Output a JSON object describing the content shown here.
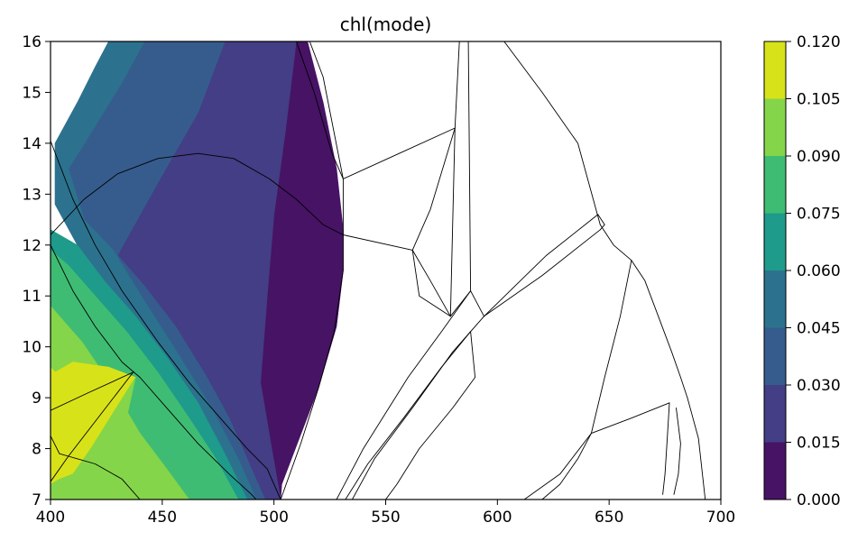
{
  "chart_data": {
    "type": "contour",
    "title": "chl(mode)",
    "xlabel": "",
    "ylabel": "",
    "xlim": [
      400,
      700
    ],
    "ylim": [
      7,
      16
    ],
    "xticks": [
      400,
      450,
      500,
      550,
      600,
      650,
      700
    ],
    "yticks": [
      7,
      8,
      9,
      10,
      11,
      12,
      13,
      14,
      15,
      16
    ],
    "grid": false,
    "colorbar": {
      "levels": [
        0.0,
        0.015,
        0.03,
        0.045,
        0.06,
        0.075,
        0.09,
        0.105,
        0.12
      ],
      "tick_labels": [
        "0.000",
        "0.015",
        "0.030",
        "0.045",
        "0.060",
        "0.075",
        "0.090",
        "0.105",
        "0.120"
      ],
      "colors": [
        "#471365",
        "#433e85",
        "#365c8d",
        "#2c728e",
        "#1e9b8a",
        "#3fbc73",
        "#85d54a",
        "#d8e219"
      ],
      "colormap": "viridis"
    },
    "filled_regions": [
      {
        "level_index": 0,
        "points": [
          [
            503,
            7
          ],
          [
            503.5,
            7.3
          ],
          [
            520,
            9.2
          ],
          [
            528,
            10.4
          ],
          [
            531,
            11.5
          ],
          [
            531,
            12.3
          ],
          [
            528,
            13.5
          ],
          [
            522,
            14.8
          ],
          [
            515,
            16
          ],
          [
            510,
            16
          ],
          [
            505,
            14.2
          ],
          [
            500,
            12.6
          ],
          [
            497,
            11
          ],
          [
            494,
            9.3
          ],
          [
            499,
            8
          ],
          [
            503,
            7
          ]
        ]
      },
      {
        "level_index": 1,
        "points": [
          [
            430,
            11.8
          ],
          [
            449,
            13.3
          ],
          [
            466,
            14.6
          ],
          [
            478,
            16
          ],
          [
            510,
            16
          ],
          [
            505,
            14.2
          ],
          [
            500,
            12.6
          ],
          [
            497,
            11
          ],
          [
            494,
            9.3
          ],
          [
            499,
            8
          ],
          [
            503,
            7
          ],
          [
            496,
            7
          ],
          [
            490,
            7.6
          ],
          [
            480,
            8.6
          ],
          [
            470,
            9.4
          ],
          [
            456,
            10.4
          ],
          [
            442,
            11.2
          ],
          [
            430,
            11.8
          ]
        ]
      },
      {
        "level_index": 2,
        "points": [
          [
            408,
            13.5
          ],
          [
            418,
            14.2
          ],
          [
            432,
            15.2
          ],
          [
            442,
            16
          ],
          [
            478,
            16
          ],
          [
            466,
            14.6
          ],
          [
            449,
            13.3
          ],
          [
            430,
            11.8
          ],
          [
            442,
            11.2
          ],
          [
            456,
            10.4
          ],
          [
            470,
            9.4
          ],
          [
            480,
            8.6
          ],
          [
            490,
            7.6
          ],
          [
            496,
            7
          ],
          [
            492,
            7
          ],
          [
            484,
            7.8
          ],
          [
            472,
            8.8
          ],
          [
            458,
            9.8
          ],
          [
            442,
            10.9
          ],
          [
            428,
            11.9
          ],
          [
            415,
            12.5
          ],
          [
            408,
            13.5
          ]
        ]
      },
      {
        "level_index": 3,
        "points": [
          [
            402,
            14
          ],
          [
            412,
            14.8
          ],
          [
            420,
            15.5
          ],
          [
            426,
            16
          ],
          [
            442,
            16
          ],
          [
            432,
            15.2
          ],
          [
            418,
            14.2
          ],
          [
            408,
            13.5
          ],
          [
            415,
            12.5
          ],
          [
            428,
            11.9
          ],
          [
            442,
            10.9
          ],
          [
            458,
            9.8
          ],
          [
            472,
            8.8
          ],
          [
            484,
            7.8
          ],
          [
            492,
            7
          ],
          [
            488,
            7
          ],
          [
            478,
            7.9
          ],
          [
            466,
            8.9
          ],
          [
            452,
            9.8
          ],
          [
            438,
            10.6
          ],
          [
            424,
            11.3
          ],
          [
            412,
            12
          ],
          [
            402,
            12.8
          ],
          [
            402,
            14
          ]
        ]
      },
      {
        "level_index": 4,
        "points": [
          [
            400,
            12.3
          ],
          [
            412,
            12
          ],
          [
            424,
            11.3
          ],
          [
            438,
            10.6
          ],
          [
            452,
            9.8
          ],
          [
            466,
            8.9
          ],
          [
            478,
            7.9
          ],
          [
            488,
            7
          ],
          [
            484,
            7
          ],
          [
            474,
            7.8
          ],
          [
            462,
            8.6
          ],
          [
            448,
            9.5
          ],
          [
            434,
            10.3
          ],
          [
            420,
            11
          ],
          [
            408,
            11.6
          ],
          [
            400,
            11.9
          ],
          [
            400,
            12.3
          ]
        ]
      },
      {
        "level_index": 5,
        "points": [
          [
            400,
            11.9
          ],
          [
            408,
            11.6
          ],
          [
            420,
            11
          ],
          [
            434,
            10.3
          ],
          [
            448,
            9.5
          ],
          [
            462,
            8.6
          ],
          [
            474,
            7.8
          ],
          [
            484,
            7
          ],
          [
            462,
            7
          ],
          [
            452,
            7.6
          ],
          [
            440,
            8.3
          ],
          [
            428,
            9.2
          ],
          [
            414,
            10.1
          ],
          [
            404,
            10.6
          ],
          [
            400,
            10.8
          ],
          [
            400,
            11.9
          ]
        ]
      },
      {
        "level_index": 6,
        "points": [
          [
            400,
            10.8
          ],
          [
            404,
            10.6
          ],
          [
            414,
            10.1
          ],
          [
            428,
            9.2
          ],
          [
            440,
            8.3
          ],
          [
            452,
            7.6
          ],
          [
            462,
            7
          ],
          [
            416,
            7
          ],
          [
            422,
            7.5
          ],
          [
            432,
            8.2
          ],
          [
            438,
            9.4
          ],
          [
            426,
            9.6
          ],
          [
            410,
            9.7
          ],
          [
            402,
            9.5
          ],
          [
            400,
            9.6
          ],
          [
            400,
            10.8
          ]
        ]
      },
      {
        "level_index": 7,
        "points": [
          [
            400,
            9.6
          ],
          [
            402,
            9.5
          ],
          [
            410,
            9.7
          ],
          [
            426,
            9.6
          ],
          [
            438,
            9.4
          ],
          [
            428,
            8.7
          ],
          [
            418,
            8
          ],
          [
            410,
            7.5
          ],
          [
            404,
            7.4
          ],
          [
            400,
            7.3
          ],
          [
            400,
            9.6
          ]
        ]
      },
      {
        "level_index": 6,
        "points": [
          [
            400,
            7.3
          ],
          [
            404,
            7.4
          ],
          [
            410,
            7.5
          ],
          [
            418,
            8
          ],
          [
            428,
            8.7
          ],
          [
            438,
            9.4
          ],
          [
            432,
            8.2
          ],
          [
            422,
            7.5
          ],
          [
            416,
            7
          ],
          [
            400,
            7
          ],
          [
            400,
            7.3
          ]
        ]
      }
    ],
    "boundary_lines": [
      [
        [
          400,
          14.05
        ],
        [
          410,
          12.9
        ],
        [
          420,
          12.0
        ],
        [
          432,
          11.1
        ],
        [
          448,
          10.1
        ],
        [
          462,
          9.3
        ],
        [
          476,
          8.6
        ],
        [
          488,
          8.0
        ],
        [
          497,
          7.6
        ],
        [
          503,
          7.0
        ]
      ],
      [
        [
          400,
          12.2
        ],
        [
          415,
          12.9
        ],
        [
          430,
          13.4
        ],
        [
          448,
          13.7
        ],
        [
          466,
          13.8
        ],
        [
          482,
          13.7
        ],
        [
          498,
          13.3
        ],
        [
          510,
          12.9
        ],
        [
          522,
          12.4
        ],
        [
          531,
          12.2
        ]
      ],
      [
        [
          400,
          12.0
        ],
        [
          410,
          11.1
        ],
        [
          420,
          10.4
        ],
        [
          432,
          9.7
        ],
        [
          440,
          9.4
        ],
        [
          452,
          8.8
        ],
        [
          466,
          8.1
        ],
        [
          480,
          7.5
        ],
        [
          490,
          7.1
        ],
        [
          492,
          7.0
        ]
      ],
      [
        [
          400,
          8.75
        ],
        [
          417,
          9.1
        ],
        [
          437,
          9.5
        ]
      ],
      [
        [
          400,
          7.35
        ],
        [
          408,
          7.85
        ],
        [
          437,
          9.5
        ]
      ],
      [
        [
          400,
          8.25
        ],
        [
          404,
          7.9
        ],
        [
          408,
          7.85
        ],
        [
          420,
          7.7
        ],
        [
          432,
          7.4
        ],
        [
          440,
          7.0
        ]
      ],
      [
        [
          510,
          16.0
        ],
        [
          518,
          15.0
        ],
        [
          526,
          13.8
        ],
        [
          531,
          13.3
        ]
      ],
      [
        [
          516,
          16.0
        ],
        [
          522,
          15.3
        ],
        [
          531,
          13.3
        ]
      ],
      [
        [
          503,
          7.0
        ],
        [
          512,
          8.1
        ],
        [
          520,
          9.2
        ],
        [
          527,
          10.3
        ],
        [
          531,
          11.5
        ],
        [
          531,
          12.3
        ],
        [
          531,
          13.3
        ]
      ],
      [
        [
          531,
          13.3
        ],
        [
          556,
          13.8
        ],
        [
          581,
          14.3
        ]
      ],
      [
        [
          531,
          12.2
        ],
        [
          562,
          11.9
        ]
      ],
      [
        [
          562,
          11.9
        ],
        [
          570,
          12.7
        ],
        [
          581,
          14.3
        ]
      ],
      [
        [
          562,
          11.9
        ],
        [
          570,
          11.3
        ],
        [
          579,
          10.6
        ]
      ],
      [
        [
          562,
          11.9
        ],
        [
          565,
          11.0
        ],
        [
          579,
          10.6
        ]
      ],
      [
        [
          579,
          10.6
        ],
        [
          581,
          14.3
        ],
        [
          583,
          16.0
        ]
      ],
      [
        [
          587,
          16.0
        ],
        [
          588,
          11.1
        ]
      ],
      [
        [
          588,
          11.1
        ],
        [
          579,
          10.6
        ]
      ],
      [
        [
          588,
          11.1
        ],
        [
          594,
          10.6
        ]
      ],
      [
        [
          594,
          10.6
        ],
        [
          608,
          11.2
        ],
        [
          622,
          11.8
        ],
        [
          645,
          12.6
        ]
      ],
      [
        [
          594,
          10.6
        ],
        [
          620,
          11.4
        ],
        [
          646,
          12.3
        ]
      ],
      [
        [
          645,
          12.6
        ],
        [
          648,
          12.4
        ],
        [
          646,
          12.3
        ]
      ],
      [
        [
          603,
          16.0
        ],
        [
          620,
          15.0
        ],
        [
          636,
          14.0
        ],
        [
          646,
          12.4
        ]
      ],
      [
        [
          646,
          12.4
        ],
        [
          652,
          12.0
        ],
        [
          660,
          11.7
        ]
      ],
      [
        [
          660,
          11.7
        ],
        [
          666,
          11.3
        ],
        [
          672,
          10.6
        ],
        [
          678,
          9.9
        ],
        [
          682,
          9.4
        ],
        [
          685,
          9.0
        ]
      ],
      [
        [
          685,
          9.0
        ],
        [
          690,
          8.2
        ],
        [
          693,
          7.0
        ]
      ],
      [
        [
          660,
          11.7
        ],
        [
          655,
          10.6
        ],
        [
          648,
          9.4
        ],
        [
          642,
          8.3
        ]
      ],
      [
        [
          642,
          8.3
        ],
        [
          660,
          8.6
        ],
        [
          677,
          8.9
        ]
      ],
      [
        [
          642,
          8.3
        ],
        [
          628,
          7.5
        ],
        [
          612,
          7.0
        ]
      ],
      [
        [
          677,
          8.9
        ],
        [
          676,
          8.2
        ],
        [
          675,
          7.5
        ],
        [
          674,
          7.1
        ]
      ],
      [
        [
          680,
          8.8
        ],
        [
          682,
          8.1
        ],
        [
          681,
          7.5
        ],
        [
          679,
          7.1
        ]
      ],
      [
        [
          588,
          11.1
        ],
        [
          575,
          10.3
        ],
        [
          560,
          9.4
        ],
        [
          540,
          8.0
        ],
        [
          528,
          7.0
        ]
      ],
      [
        [
          594,
          10.6
        ],
        [
          580,
          9.9
        ],
        [
          562,
          8.8
        ],
        [
          545,
          7.8
        ],
        [
          535,
          7.0
        ]
      ],
      [
        [
          588,
          10.3
        ],
        [
          575,
          9.6
        ],
        [
          558,
          8.6
        ],
        [
          542,
          7.7
        ],
        [
          532,
          7.0
        ]
      ],
      [
        [
          588,
          10.3
        ],
        [
          590,
          9.4
        ],
        [
          580,
          8.8
        ],
        [
          565,
          8.0
        ],
        [
          555,
          7.3
        ],
        [
          550,
          7.0
        ]
      ],
      [
        [
          620,
          7.0
        ],
        [
          628,
          7.3
        ],
        [
          636,
          7.8
        ],
        [
          642,
          8.3
        ]
      ]
    ]
  }
}
